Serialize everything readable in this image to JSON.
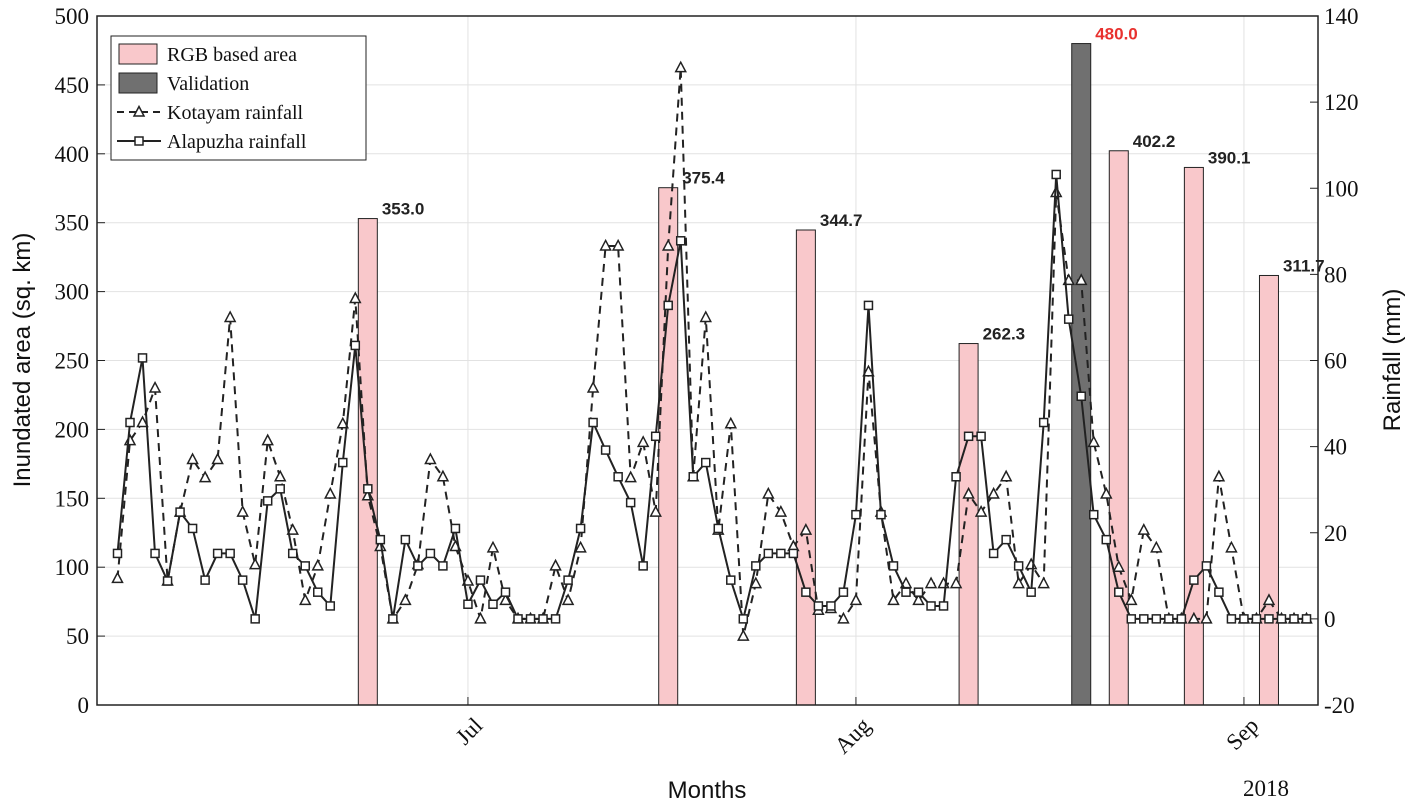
{
  "chart_data": {
    "type": "combo",
    "xlabel": "Months",
    "ylabel": "Inundated area (sq. km)",
    "y2label": "Rainfall (mm)",
    "year_label": "2018",
    "categories": [
      null,
      null,
      null,
      null,
      null,
      null,
      null,
      null,
      null,
      null,
      null,
      null,
      null,
      null,
      null,
      null,
      null,
      null,
      null,
      null,
      null,
      null,
      null,
      null,
      null,
      null,
      null,
      null,
      "Jul",
      null,
      null,
      null,
      null,
      null,
      null,
      null,
      null,
      null,
      null,
      null,
      null,
      null,
      null,
      null,
      null,
      null,
      null,
      null,
      null,
      null,
      null,
      null,
      null,
      null,
      null,
      null,
      null,
      null,
      null,
      "Aug",
      null,
      null,
      null,
      null,
      null,
      null,
      null,
      null,
      null,
      null,
      null,
      null,
      null,
      null,
      null,
      null,
      null,
      null,
      null,
      null,
      null,
      null,
      null,
      null,
      null,
      null,
      null,
      null,
      null,
      null,
      "Sep",
      null,
      null,
      null,
      null,
      null
    ],
    "ylim": [
      0,
      500
    ],
    "yticks": [
      0,
      50,
      100,
      150,
      200,
      250,
      300,
      350,
      400,
      450,
      500
    ],
    "y2lim": [
      -20,
      140
    ],
    "y2ticks": [
      -20,
      0,
      20,
      40,
      60,
      80,
      100,
      120,
      140
    ],
    "grid": true,
    "legend": "upper left",
    "series": [
      {
        "name": "RGB based area",
        "type": "bar",
        "color": "#f9c8cb",
        "label_color": "#222222",
        "values": [
          null,
          null,
          null,
          null,
          null,
          null,
          null,
          null,
          null,
          null,
          null,
          null,
          null,
          null,
          null,
          null,
          null,
          null,
          null,
          null,
          353,
          null,
          null,
          null,
          null,
          null,
          null,
          null,
          null,
          null,
          null,
          null,
          null,
          null,
          null,
          null,
          null,
          null,
          null,
          null,
          null,
          null,
          null,
          null,
          375.4,
          null,
          null,
          null,
          null,
          null,
          null,
          null,
          null,
          null,
          null,
          344.7,
          null,
          null,
          null,
          null,
          null,
          null,
          null,
          null,
          null,
          null,
          null,
          null,
          262.3,
          null,
          null,
          null,
          null,
          null,
          null,
          null,
          null,
          null,
          null,
          null,
          402.2,
          null,
          null,
          null,
          null,
          null,
          390.1,
          null,
          null,
          null,
          null,
          null,
          311.7,
          null,
          null,
          null
        ],
        "value_labels": [
          null,
          null,
          null,
          null,
          null,
          null,
          null,
          null,
          null,
          null,
          null,
          null,
          null,
          null,
          null,
          null,
          null,
          null,
          null,
          null,
          "353.0",
          null,
          null,
          null,
          null,
          null,
          null,
          null,
          null,
          null,
          null,
          null,
          null,
          null,
          null,
          null,
          null,
          null,
          null,
          null,
          null,
          null,
          null,
          null,
          "375.4",
          null,
          null,
          null,
          null,
          null,
          null,
          null,
          null,
          null,
          null,
          "344.7",
          null,
          null,
          null,
          null,
          null,
          null,
          null,
          null,
          null,
          null,
          null,
          null,
          "262.3",
          null,
          null,
          null,
          null,
          null,
          null,
          null,
          null,
          null,
          null,
          null,
          "402.2",
          null,
          null,
          null,
          null,
          null,
          "390.1",
          null,
          null,
          null,
          null,
          null,
          "311.7",
          null,
          null,
          null
        ]
      },
      {
        "name": "Validation",
        "type": "bar",
        "color": "#707070",
        "label_color": "#e8312e",
        "values": [
          null,
          null,
          null,
          null,
          null,
          null,
          null,
          null,
          null,
          null,
          null,
          null,
          null,
          null,
          null,
          null,
          null,
          null,
          null,
          null,
          null,
          null,
          null,
          null,
          null,
          null,
          null,
          null,
          null,
          null,
          null,
          null,
          null,
          null,
          null,
          null,
          null,
          null,
          null,
          null,
          null,
          null,
          null,
          null,
          null,
          null,
          null,
          null,
          null,
          null,
          null,
          null,
          null,
          null,
          null,
          null,
          null,
          null,
          null,
          null,
          null,
          null,
          null,
          null,
          null,
          null,
          null,
          null,
          null,
          null,
          null,
          null,
          null,
          null,
          null,
          null,
          null,
          480,
          null,
          null,
          null,
          null,
          null,
          null,
          null,
          null,
          null,
          null,
          null,
          null,
          null,
          null,
          null,
          null,
          null,
          null
        ],
        "value_labels": [
          null,
          null,
          null,
          null,
          null,
          null,
          null,
          null,
          null,
          null,
          null,
          null,
          null,
          null,
          null,
          null,
          null,
          null,
          null,
          null,
          null,
          null,
          null,
          null,
          null,
          null,
          null,
          null,
          null,
          null,
          null,
          null,
          null,
          null,
          null,
          null,
          null,
          null,
          null,
          null,
          null,
          null,
          null,
          null,
          null,
          null,
          null,
          null,
          null,
          null,
          null,
          null,
          null,
          null,
          null,
          null,
          null,
          null,
          null,
          null,
          null,
          null,
          null,
          null,
          null,
          null,
          null,
          null,
          null,
          null,
          null,
          null,
          null,
          null,
          null,
          null,
          null,
          "480.0",
          null,
          null,
          null,
          null,
          null,
          null,
          null,
          null,
          null,
          null,
          null,
          null,
          null,
          null,
          null,
          null,
          null,
          null
        ]
      },
      {
        "name": "Kotayam rainfall",
        "type": "line",
        "axis": "y2",
        "color": "#222222",
        "linestyle": "dashed",
        "marker": "triangle",
        "values": [
          9.4,
          41.4,
          45.6,
          53.6,
          8.8,
          24.8,
          37,
          32.8,
          37,
          70,
          24.8,
          12.6,
          41.4,
          33,
          20.6,
          4.3,
          12.3,
          29,
          45.3,
          74.4,
          28.6,
          16.8,
          0,
          4.3,
          12.6,
          37,
          33,
          16.8,
          8.8,
          0,
          16.5,
          4.3,
          0,
          0,
          0,
          12.3,
          4.3,
          16.5,
          53.6,
          86.6,
          86.6,
          32.8,
          41,
          24.8,
          86.6,
          128,
          33,
          70,
          20.6,
          45.3,
          -4,
          8.2,
          29,
          24.8,
          16.8,
          20.6,
          2,
          2.4,
          0,
          4.3,
          57.4,
          24.8,
          4.3,
          8.2,
          4.3,
          8.2,
          8.2,
          8.2,
          29,
          24.8,
          29,
          33,
          8.2,
          12.6,
          8.2,
          99,
          78.6,
          78.6,
          41,
          29,
          12,
          4.3,
          20.6,
          16.5,
          0,
          0,
          0,
          0,
          33,
          16.5,
          0,
          0,
          4.3,
          0,
          0,
          0
        ]
      },
      {
        "name": "Alapuzha rainfall",
        "type": "line",
        "axis": "y2",
        "color": "#222222",
        "linestyle": "solid",
        "marker": "square",
        "values": [
          15.2,
          45.6,
          60.6,
          15.2,
          8.8,
          24.8,
          21,
          9,
          15.2,
          15.2,
          9,
          0,
          27.4,
          30.2,
          15.2,
          12.3,
          6.2,
          3,
          36.3,
          63.5,
          30.2,
          18.4,
          0,
          18.4,
          12.3,
          15.2,
          12.3,
          21,
          3.4,
          9,
          3.4,
          6.2,
          0,
          0,
          0,
          0,
          9,
          21,
          45.6,
          39.2,
          33,
          27,
          12.3,
          42.4,
          72.8,
          87.8,
          33,
          36.3,
          21,
          9,
          0,
          12.3,
          15.2,
          15.2,
          15.2,
          6.2,
          3,
          3,
          6.2,
          24.2,
          72.8,
          24.2,
          12.3,
          6.2,
          6.2,
          3,
          3,
          33,
          42.4,
          42.4,
          15.2,
          18.4,
          12.3,
          6.2,
          45.6,
          103.2,
          69.6,
          51.7,
          24.2,
          18.4,
          6.2,
          0,
          0,
          0,
          0,
          0,
          9,
          12.3,
          6.2,
          0,
          0,
          0,
          0,
          0,
          0,
          0
        ]
      }
    ]
  }
}
